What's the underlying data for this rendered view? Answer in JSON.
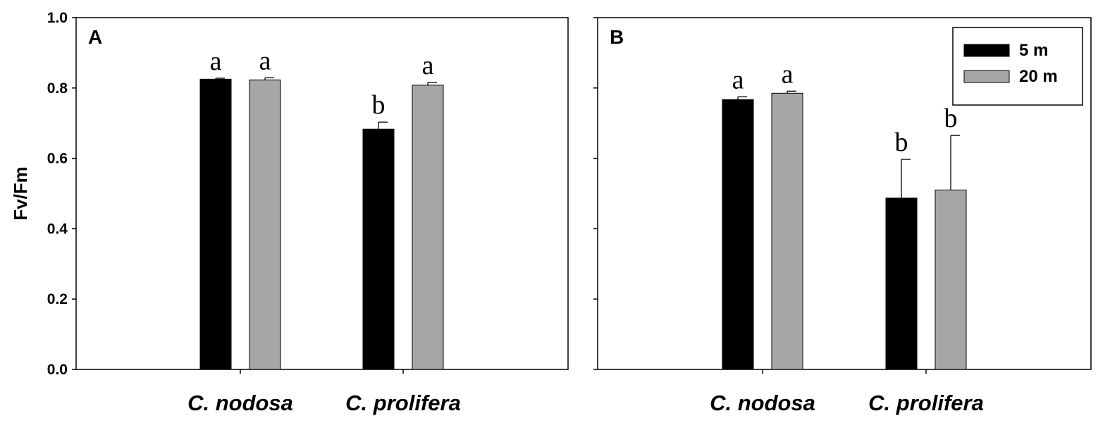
{
  "chart_data": [
    {
      "type": "bar",
      "panel_label": "A",
      "ylabel": "Fv/Fm",
      "ylim": [
        0,
        1.0
      ],
      "yticks": [
        "0.0",
        "0.2",
        "0.4",
        "0.6",
        "0.8",
        "1.0"
      ],
      "categories": [
        "C. nodosa",
        "C. prolifera"
      ],
      "series": [
        {
          "name": "5 m",
          "color": "#000000",
          "values": [
            0.825,
            0.683
          ],
          "errors": [
            0.003,
            0.02
          ],
          "letters": [
            "a",
            "b"
          ]
        },
        {
          "name": "20 m",
          "color": "#a6a6a6",
          "values": [
            0.823,
            0.808
          ],
          "errors": [
            0.006,
            0.008
          ],
          "letters": [
            "a",
            "a"
          ]
        }
      ],
      "legend": null
    },
    {
      "type": "bar",
      "panel_label": "B",
      "ylabel": "",
      "ylim": [
        0,
        1.0
      ],
      "yticks": [],
      "categories": [
        "C. nodosa",
        "C. prolifera"
      ],
      "series": [
        {
          "name": "5 m",
          "color": "#000000",
          "values": [
            0.767,
            0.487
          ],
          "errors": [
            0.008,
            0.11
          ],
          "letters": [
            "a",
            "b"
          ]
        },
        {
          "name": "20 m",
          "color": "#a6a6a6",
          "values": [
            0.785,
            0.51
          ],
          "errors": [
            0.006,
            0.155
          ],
          "letters": [
            "a",
            "b"
          ]
        }
      ],
      "legend": {
        "placement": "top-right",
        "entries": [
          "5 m",
          "20 m"
        ]
      }
    }
  ]
}
